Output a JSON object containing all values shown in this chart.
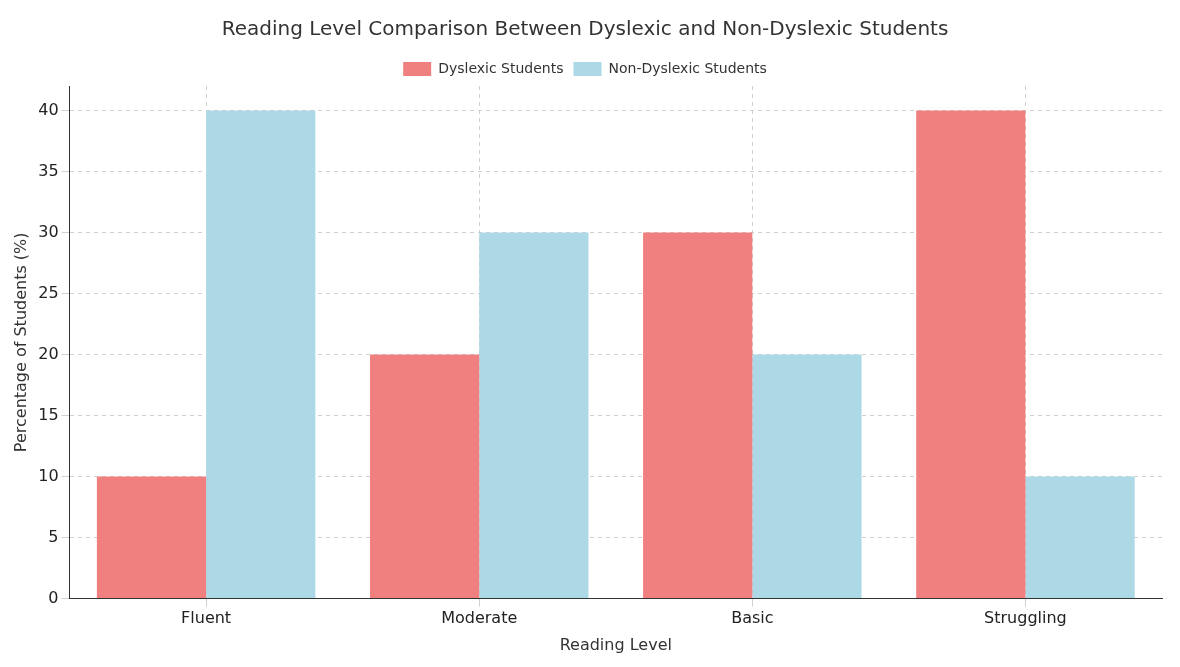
{
  "chart_data": {
    "type": "bar",
    "title": "Reading Level Comparison Between Dyslexic and Non-Dyslexic Students",
    "xlabel": "Reading Level",
    "ylabel": "Percentage of Students (%)",
    "categories": [
      "Fluent",
      "Moderate",
      "Basic",
      "Struggling"
    ],
    "series": [
      {
        "name": "Dyslexic Students",
        "color": "#f08080",
        "values": [
          10,
          20,
          30,
          40
        ]
      },
      {
        "name": "Non-Dyslexic Students",
        "color": "#add8e6",
        "values": [
          40,
          30,
          20,
          10
        ]
      }
    ],
    "ylim": [
      0,
      42
    ],
    "yticks": [
      0,
      5,
      10,
      15,
      20,
      25,
      30,
      35,
      40
    ],
    "grid": true,
    "legend": "top"
  }
}
